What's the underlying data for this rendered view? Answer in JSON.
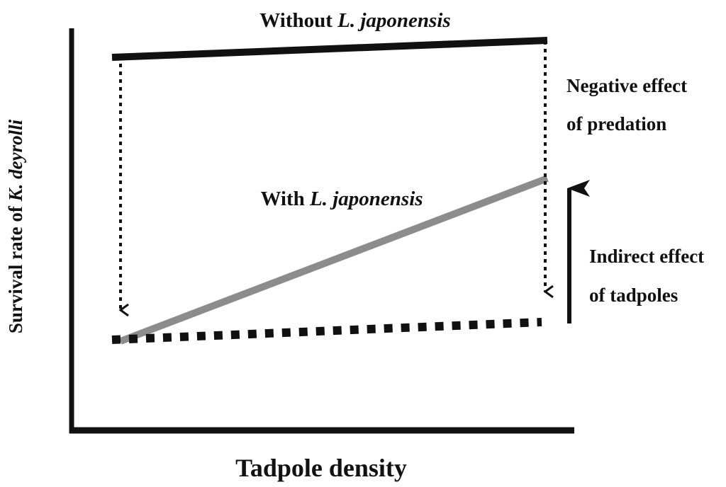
{
  "labels": {
    "top_prefix": "Without ",
    "top_species": "L. japonensis",
    "middle_prefix": "With ",
    "middle_species": "L. japonensis",
    "neg_line1": "Negative effect",
    "neg_line2": "of predation",
    "ind_line1": "Indirect effect",
    "ind_line2": "of tadpoles",
    "y_prefix": "Survival rate of ",
    "y_species": "K. deyrolli",
    "x_label": "Tadpole density"
  },
  "colors": {
    "ink": "#111111",
    "with_predator_line": "#8c8c8c"
  }
}
